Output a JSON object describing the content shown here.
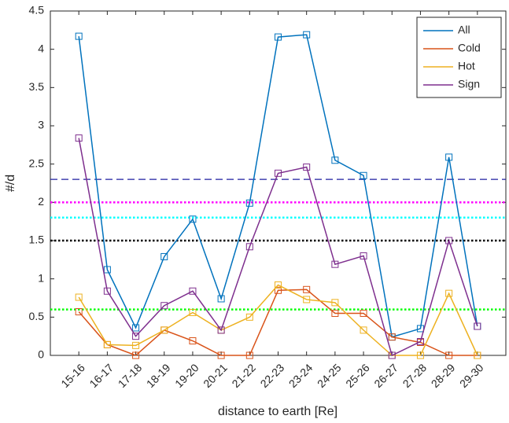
{
  "chart_data": {
    "type": "line",
    "xlabel": "distance to earth [Re]",
    "ylabel": "#/d",
    "categories": [
      "15-16",
      "16-17",
      "17-18",
      "18-19",
      "19-20",
      "20-21",
      "21-22",
      "22-23",
      "23-24",
      "24-25",
      "25-26",
      "26-27",
      "27-28",
      "28-29",
      "29-30"
    ],
    "series": [
      {
        "name": "All",
        "color": "#0072bd",
        "values": [
          4.17,
          1.12,
          0.36,
          1.29,
          1.78,
          0.74,
          1.99,
          4.16,
          4.19,
          2.55,
          2.35,
          0.24,
          0.35,
          2.59,
          0.38
        ]
      },
      {
        "name": "Cold",
        "color": "#d95319",
        "values": [
          0.57,
          0.14,
          0,
          0.33,
          0.19,
          0,
          0,
          0.85,
          0.86,
          0.55,
          0.55,
          0.24,
          0.17,
          0,
          0
        ]
      },
      {
        "name": "Hot",
        "color": "#edb120",
        "values": [
          0.76,
          0.14,
          0.13,
          0.33,
          0.56,
          0.33,
          0.5,
          0.92,
          0.73,
          0.69,
          0.33,
          0,
          0,
          0.81,
          0
        ]
      },
      {
        "name": "Sign",
        "color": "#7e2f8e",
        "values": [
          2.84,
          0.84,
          0.25,
          0.65,
          0.84,
          0.33,
          1.42,
          2.38,
          2.46,
          1.19,
          1.3,
          0,
          0.18,
          1.5,
          0.38
        ]
      }
    ],
    "reference_lines": [
      {
        "value": 2.3,
        "color": "#1f1fa0",
        "style": "dashed"
      },
      {
        "value": 2.0,
        "color": "#ff00ff",
        "style": "dotted"
      },
      {
        "value": 1.8,
        "color": "#00ffff",
        "style": "dotted"
      },
      {
        "value": 1.5,
        "color": "#000000",
        "style": "dotted"
      },
      {
        "value": 0.6,
        "color": "#00ff00",
        "style": "dotted"
      }
    ],
    "ylim": [
      0,
      4.5
    ],
    "yticks": [
      0,
      0.5,
      1,
      1.5,
      2,
      2.5,
      3,
      3.5,
      4,
      4.5
    ],
    "grid": false,
    "legend": "top-right"
  }
}
